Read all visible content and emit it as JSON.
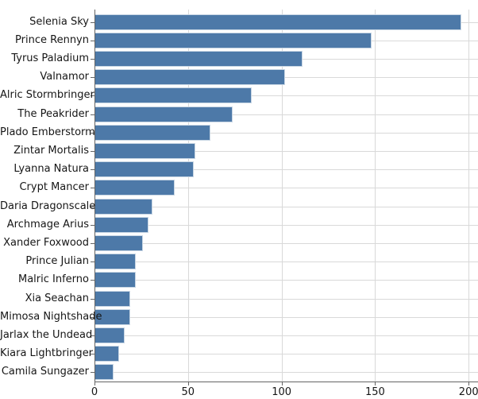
{
  "chart_data": {
    "type": "bar",
    "orientation": "horizontal",
    "title": "",
    "xlabel": "",
    "ylabel": "",
    "categories": [
      "Selenia Sky",
      "Prince Rennyn",
      "Tyrus Paladium",
      "Valnamor",
      "Alric Stormbringer",
      "The Peakrider",
      "Plado Emberstorm",
      "Zintar Mortalis",
      "Lyanna Natura",
      "Crypt Mancer",
      "Daria Dragonscale",
      "Archmage Arius",
      "Xander Foxwood",
      "Prince Julian",
      "Malric Inferno",
      "Xia Seachan",
      "Mimosa Nightshade",
      "Jarlax the Undead",
      "Kiara Lightbringer",
      "Camila Sungazer"
    ],
    "values": [
      196,
      148,
      111,
      102,
      84,
      74,
      62,
      54,
      53,
      43,
      31,
      29,
      26,
      22,
      22,
      19,
      19,
      16,
      13,
      10
    ],
    "xlim": [
      0,
      205
    ],
    "x_ticks": [
      0,
      50,
      100,
      150,
      200
    ],
    "grid": true,
    "legend": "none",
    "bar_color": "#4d79a8",
    "bar_edge_color": "#c8d6e4",
    "grid_color": "#d9d9d9",
    "axis_color": "#646464",
    "text_color": "#161616",
    "background_color": "#ffffff"
  }
}
